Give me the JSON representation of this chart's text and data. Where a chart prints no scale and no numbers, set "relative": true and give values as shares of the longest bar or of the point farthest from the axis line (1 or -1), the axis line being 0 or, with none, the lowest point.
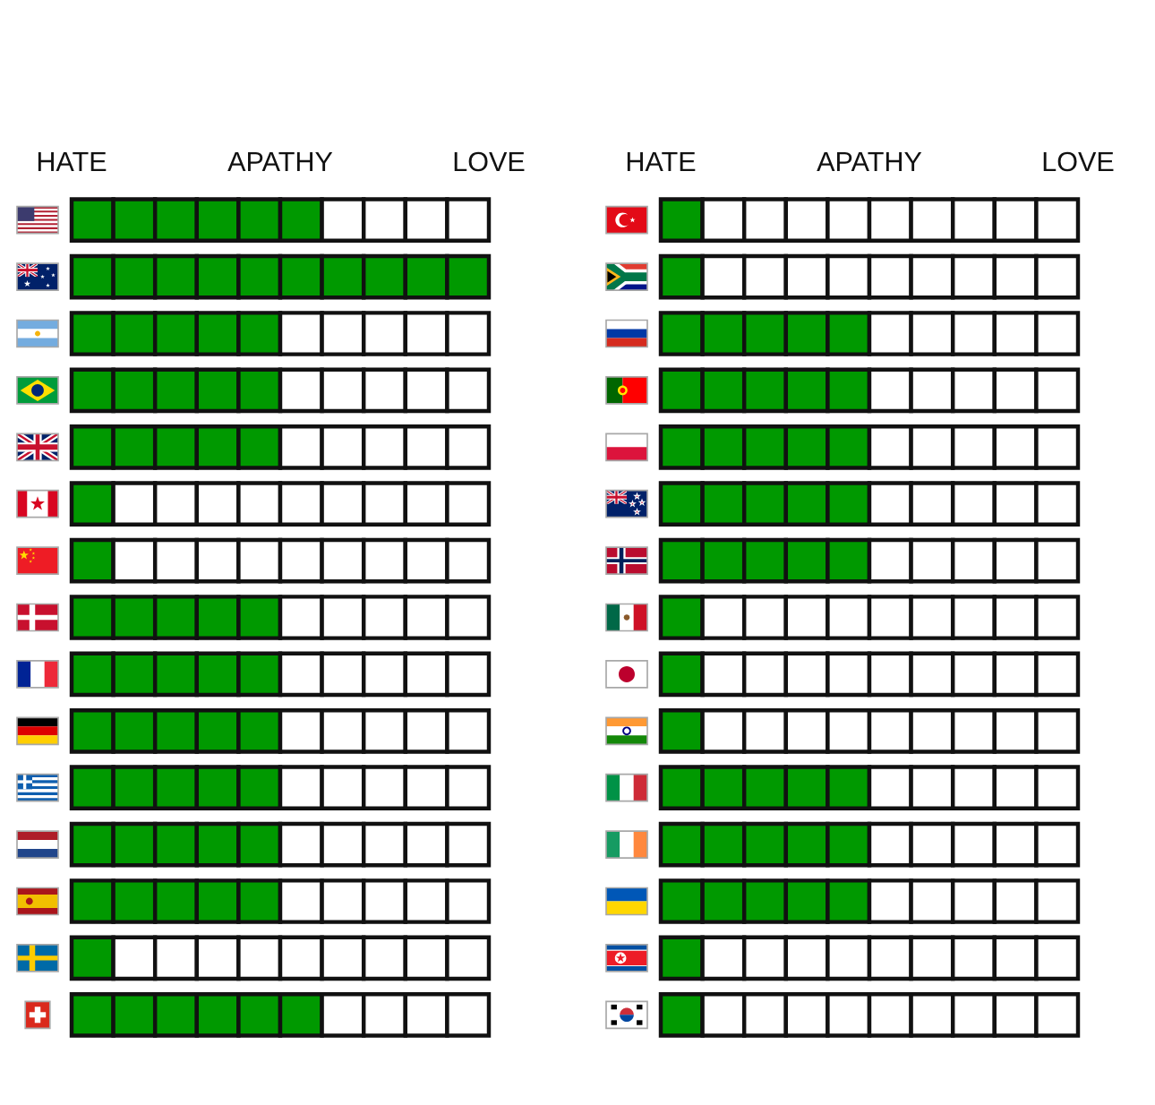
{
  "chart_data": [
    {
      "type": "bar",
      "orientation": "horizontal",
      "stacked": true,
      "relative": true,
      "annotations": [
        "HATE",
        "APATHY",
        "LOVE"
      ],
      "categories": [
        null,
        null,
        null,
        null,
        null,
        null,
        null,
        null,
        null,
        null,
        null,
        null,
        null,
        null,
        null
      ],
      "series": [
        {
          "values": [
            0.1,
            0.1,
            0.1,
            0.1,
            0.1,
            0.1,
            0.1,
            0.1,
            0.1,
            0.1,
            0.1,
            0.1,
            0.1,
            0.1,
            0.1
          ],
          "colors": [
            "#009900",
            "#009900",
            "#009900",
            "#009900",
            "#009900",
            "#009900",
            "#009900",
            "#009900",
            "#009900",
            "#009900",
            "#009900",
            "#009900",
            "#009900",
            "#009900",
            "#009900"
          ]
        },
        {
          "values": [
            0.1,
            0.1,
            0.1,
            0.1,
            0.1,
            0.1,
            0.1,
            0.1,
            0.1,
            0.1,
            0.1,
            0.1,
            0.1,
            0.1,
            0.1
          ],
          "colors": [
            "#009900",
            "#009900",
            "#009900",
            "#009900",
            "#009900",
            "#ffffff",
            "#ffffff",
            "#009900",
            "#009900",
            "#009900",
            "#009900",
            "#009900",
            "#009900",
            "#ffffff",
            "#009900"
          ]
        },
        {
          "values": [
            0.1,
            0.1,
            0.1,
            0.1,
            0.1,
            0.1,
            0.1,
            0.1,
            0.1,
            0.1,
            0.1,
            0.1,
            0.1,
            0.1,
            0.1
          ],
          "colors": [
            "#009900",
            "#009900",
            "#009900",
            "#009900",
            "#009900",
            "#ffffff",
            "#ffffff",
            "#009900",
            "#009900",
            "#009900",
            "#009900",
            "#009900",
            "#009900",
            "#ffffff",
            "#009900"
          ]
        },
        {
          "values": [
            0.1,
            0.1,
            0.1,
            0.1,
            0.1,
            0.1,
            0.1,
            0.1,
            0.1,
            0.1,
            0.1,
            0.1,
            0.1,
            0.1,
            0.1
          ],
          "colors": [
            "#009900",
            "#009900",
            "#009900",
            "#009900",
            "#009900",
            "#ffffff",
            "#ffffff",
            "#009900",
            "#009900",
            "#009900",
            "#009900",
            "#009900",
            "#009900",
            "#ffffff",
            "#009900"
          ]
        },
        {
          "values": [
            0.1,
            0.1,
            0.1,
            0.1,
            0.1,
            0.1,
            0.1,
            0.1,
            0.1,
            0.1,
            0.1,
            0.1,
            0.1,
            0.1,
            0.1
          ],
          "colors": [
            "#009900",
            "#009900",
            "#009900",
            "#009900",
            "#009900",
            "#ffffff",
            "#ffffff",
            "#009900",
            "#009900",
            "#009900",
            "#009900",
            "#009900",
            "#009900",
            "#ffffff",
            "#009900"
          ]
        },
        {
          "values": [
            0.1,
            0.1,
            0.1,
            0.1,
            0.1,
            0.1,
            0.1,
            0.1,
            0.1,
            0.1,
            0.1,
            0.1,
            0.1,
            0.1,
            0.1
          ],
          "colors": [
            "#009900",
            "#009900",
            "#ffffff",
            "#ffffff",
            "#ffffff",
            "#ffffff",
            "#ffffff",
            "#ffffff",
            "#ffffff",
            "#ffffff",
            "#ffffff",
            "#ffffff",
            "#ffffff",
            "#ffffff",
            "#009900"
          ]
        },
        {
          "values": [
            0.1,
            0.1,
            0.1,
            0.1,
            0.1,
            0.1,
            0.1,
            0.1,
            0.1,
            0.1,
            0.1,
            0.1,
            0.1,
            0.1,
            0.1
          ],
          "colors": [
            "#ffffff",
            "#009900",
            "#ffffff",
            "#ffffff",
            "#ffffff",
            "#ffffff",
            "#ffffff",
            "#ffffff",
            "#ffffff",
            "#ffffff",
            "#ffffff",
            "#ffffff",
            "#ffffff",
            "#ffffff",
            "#ffffff"
          ]
        },
        {
          "values": [
            0.1,
            0.1,
            0.1,
            0.1,
            0.1,
            0.1,
            0.1,
            0.1,
            0.1,
            0.1,
            0.1,
            0.1,
            0.1,
            0.1,
            0.1
          ],
          "colors": [
            "#ffffff",
            "#009900",
            "#ffffff",
            "#ffffff",
            "#ffffff",
            "#ffffff",
            "#ffffff",
            "#ffffff",
            "#ffffff",
            "#ffffff",
            "#ffffff",
            "#ffffff",
            "#ffffff",
            "#ffffff",
            "#ffffff"
          ]
        },
        {
          "values": [
            0.1,
            0.1,
            0.1,
            0.1,
            0.1,
            0.1,
            0.1,
            0.1,
            0.1,
            0.1,
            0.1,
            0.1,
            0.1,
            0.1,
            0.1
          ],
          "colors": [
            "#ffffff",
            "#009900",
            "#ffffff",
            "#ffffff",
            "#ffffff",
            "#ffffff",
            "#ffffff",
            "#ffffff",
            "#ffffff",
            "#ffffff",
            "#ffffff",
            "#ffffff",
            "#ffffff",
            "#ffffff",
            "#ffffff"
          ]
        },
        {
          "values": [
            0.1,
            0.1,
            0.1,
            0.1,
            0.1,
            0.1,
            0.1,
            0.1,
            0.1,
            0.1,
            0.1,
            0.1,
            0.1,
            0.1,
            0.1
          ],
          "colors": [
            "#ffffff",
            "#009900",
            "#ffffff",
            "#ffffff",
            "#ffffff",
            "#ffffff",
            "#ffffff",
            "#ffffff",
            "#ffffff",
            "#ffffff",
            "#ffffff",
            "#ffffff",
            "#ffffff",
            "#ffffff",
            "#ffffff"
          ]
        }
      ]
    },
    {
      "type": "bar",
      "orientation": "horizontal",
      "stacked": true,
      "relative": true,
      "annotations": [
        "HATE",
        "APATHY",
        "LOVE"
      ],
      "categories": [
        null,
        null,
        null,
        null,
        null,
        null,
        null,
        null,
        null,
        null,
        null,
        null,
        null,
        null,
        null
      ],
      "series": [
        {
          "values": [
            0.1,
            0.1,
            0.1,
            0.1,
            0.1,
            0.1,
            0.1,
            0.1,
            0.1,
            0.1,
            0.1,
            0.1,
            0.1,
            0.1,
            0.1
          ],
          "colors": [
            "#009900",
            "#009900",
            "#009900",
            "#009900",
            "#009900",
            "#009900",
            "#009900",
            "#009900",
            "#009900",
            "#009900",
            "#009900",
            "#009900",
            "#009900",
            "#009900",
            "#009900"
          ]
        },
        {
          "values": [
            0.1,
            0.1,
            0.1,
            0.1,
            0.1,
            0.1,
            0.1,
            0.1,
            0.1,
            0.1,
            0.1,
            0.1,
            0.1,
            0.1,
            0.1
          ],
          "colors": [
            "#ffffff",
            "#ffffff",
            "#009900",
            "#009900",
            "#009900",
            "#009900",
            "#009900",
            "#ffffff",
            "#ffffff",
            "#ffffff",
            "#009900",
            "#009900",
            "#009900",
            "#ffffff",
            "#ffffff"
          ]
        },
        {
          "values": [
            0.1,
            0.1,
            0.1,
            0.1,
            0.1,
            0.1,
            0.1,
            0.1,
            0.1,
            0.1,
            0.1,
            0.1,
            0.1,
            0.1,
            0.1
          ],
          "colors": [
            "#ffffff",
            "#ffffff",
            "#009900",
            "#009900",
            "#009900",
            "#009900",
            "#009900",
            "#ffffff",
            "#ffffff",
            "#ffffff",
            "#009900",
            "#009900",
            "#009900",
            "#ffffff",
            "#ffffff"
          ]
        },
        {
          "values": [
            0.1,
            0.1,
            0.1,
            0.1,
            0.1,
            0.1,
            0.1,
            0.1,
            0.1,
            0.1,
            0.1,
            0.1,
            0.1,
            0.1,
            0.1
          ],
          "colors": [
            "#ffffff",
            "#ffffff",
            "#009900",
            "#009900",
            "#009900",
            "#009900",
            "#009900",
            "#ffffff",
            "#ffffff",
            "#ffffff",
            "#009900",
            "#009900",
            "#009900",
            "#ffffff",
            "#ffffff"
          ]
        },
        {
          "values": [
            0.1,
            0.1,
            0.1,
            0.1,
            0.1,
            0.1,
            0.1,
            0.1,
            0.1,
            0.1,
            0.1,
            0.1,
            0.1,
            0.1,
            0.1
          ],
          "colors": [
            "#ffffff",
            "#ffffff",
            "#009900",
            "#009900",
            "#009900",
            "#009900",
            "#009900",
            "#ffffff",
            "#ffffff",
            "#ffffff",
            "#009900",
            "#009900",
            "#009900",
            "#ffffff",
            "#ffffff"
          ]
        },
        {
          "values": [
            0.1,
            0.1,
            0.1,
            0.1,
            0.1,
            0.1,
            0.1,
            0.1,
            0.1,
            0.1,
            0.1,
            0.1,
            0.1,
            0.1,
            0.1
          ],
          "colors": [
            "#ffffff",
            "#ffffff",
            "#ffffff",
            "#ffffff",
            "#ffffff",
            "#ffffff",
            "#ffffff",
            "#ffffff",
            "#ffffff",
            "#ffffff",
            "#ffffff",
            "#ffffff",
            "#ffffff",
            "#ffffff",
            "#ffffff"
          ]
        },
        {
          "values": [
            0.1,
            0.1,
            0.1,
            0.1,
            0.1,
            0.1,
            0.1,
            0.1,
            0.1,
            0.1,
            0.1,
            0.1,
            0.1,
            0.1,
            0.1
          ],
          "colors": [
            "#ffffff",
            "#ffffff",
            "#ffffff",
            "#ffffff",
            "#ffffff",
            "#ffffff",
            "#ffffff",
            "#ffffff",
            "#ffffff",
            "#ffffff",
            "#ffffff",
            "#ffffff",
            "#ffffff",
            "#ffffff",
            "#ffffff"
          ]
        },
        {
          "values": [
            0.1,
            0.1,
            0.1,
            0.1,
            0.1,
            0.1,
            0.1,
            0.1,
            0.1,
            0.1,
            0.1,
            0.1,
            0.1,
            0.1,
            0.1
          ],
          "colors": [
            "#ffffff",
            "#ffffff",
            "#ffffff",
            "#ffffff",
            "#ffffff",
            "#ffffff",
            "#ffffff",
            "#ffffff",
            "#ffffff",
            "#ffffff",
            "#ffffff",
            "#ffffff",
            "#ffffff",
            "#ffffff",
            "#ffffff"
          ]
        },
        {
          "values": [
            0.1,
            0.1,
            0.1,
            0.1,
            0.1,
            0.1,
            0.1,
            0.1,
            0.1,
            0.1,
            0.1,
            0.1,
            0.1,
            0.1,
            0.1
          ],
          "colors": [
            "#ffffff",
            "#ffffff",
            "#ffffff",
            "#ffffff",
            "#ffffff",
            "#ffffff",
            "#ffffff",
            "#ffffff",
            "#ffffff",
            "#ffffff",
            "#ffffff",
            "#ffffff",
            "#ffffff",
            "#ffffff",
            "#ffffff"
          ]
        },
        {
          "values": [
            0.1,
            0.1,
            0.1,
            0.1,
            0.1,
            0.1,
            0.1,
            0.1,
            0.1,
            0.1,
            0.1,
            0.1,
            0.1,
            0.1,
            0.1
          ],
          "colors": [
            "#ffffff",
            "#ffffff",
            "#ffffff",
            "#ffffff",
            "#ffffff",
            "#ffffff",
            "#ffffff",
            "#ffffff",
            "#ffffff",
            "#ffffff",
            "#ffffff",
            "#ffffff",
            "#ffffff",
            "#ffffff",
            "#ffffff"
          ]
        }
      ]
    }
  ]
}
